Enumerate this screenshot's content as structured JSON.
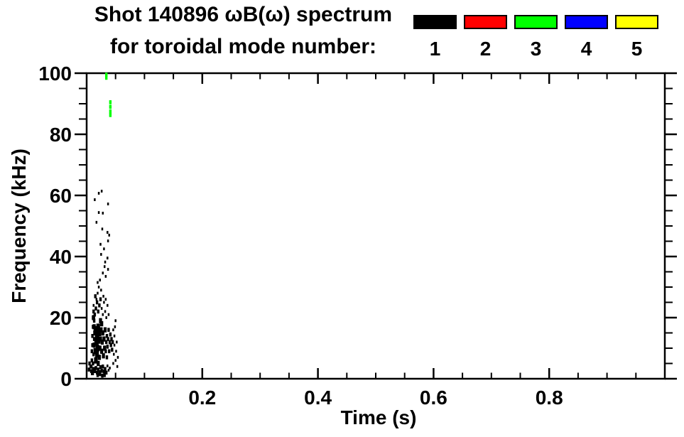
{
  "figure": {
    "title_line1": "Shot 140896 ωB(ω) spectrum",
    "title_line2": "for toroidal mode number:",
    "background": "#ffffff",
    "frame_color": "#000000"
  },
  "legend": {
    "entries": [
      {
        "label": "1",
        "color": "#000000"
      },
      {
        "label": "2",
        "color": "#ff0000"
      },
      {
        "label": "3",
        "color": "#00ff00"
      },
      {
        "label": "4",
        "color": "#0000ff"
      },
      {
        "label": "5",
        "color": "#ffff00"
      }
    ]
  },
  "chart_data": {
    "type": "scatter",
    "title": "Shot 140896 ωB(ω) spectrum for toroidal mode number:",
    "xlabel": "Time (s)",
    "ylabel": "Frequency (kHz)",
    "xlim": [
      0,
      1.0
    ],
    "ylim": [
      0,
      100
    ],
    "x_major_ticks": [
      0.2,
      0.4,
      0.6,
      0.8
    ],
    "x_tick_labels": [
      "0.2",
      "0.4",
      "0.6",
      "0.8"
    ],
    "x_minor_step": 0.05,
    "y_major_ticks": [
      0,
      20,
      40,
      60,
      80,
      100
    ],
    "y_tick_labels": [
      "0",
      "20",
      "40",
      "60",
      "80",
      "100"
    ],
    "y_minor_step": 5,
    "grid": false,
    "legend_position": "top-right, above plot",
    "series": [
      {
        "name": "toroidal mode n=1",
        "mode": 1,
        "color": "#000000",
        "points": [
          [
            0.016,
            16,
            5
          ],
          [
            0.018,
            14,
            5
          ],
          [
            0.017,
            12,
            5
          ],
          [
            0.019,
            10,
            4
          ],
          [
            0.015,
            9,
            4
          ],
          [
            0.02,
            17,
            4
          ],
          [
            0.022,
            15,
            4
          ],
          [
            0.021,
            12.5,
            4
          ],
          [
            0.018,
            8,
            4
          ],
          [
            0.016,
            6,
            4
          ],
          [
            0.023,
            10,
            3
          ],
          [
            0.024,
            13,
            3
          ],
          [
            0.025,
            16,
            3
          ],
          [
            0.022,
            7,
            3
          ],
          [
            0.02,
            5,
            3
          ],
          [
            0.026,
            9,
            3
          ],
          [
            0.027,
            12,
            3
          ],
          [
            0.028,
            15,
            3
          ],
          [
            0.026,
            18,
            3
          ],
          [
            0.024,
            19,
            3
          ],
          [
            0.029,
            7.5,
            3
          ],
          [
            0.031,
            10,
            3
          ],
          [
            0.03,
            13,
            3
          ],
          [
            0.032,
            16,
            3
          ],
          [
            0.013,
            11,
            3
          ],
          [
            0.014,
            15,
            3
          ],
          [
            0.013,
            17,
            3
          ],
          [
            0.012,
            20,
            3
          ],
          [
            0.034,
            12,
            2
          ],
          [
            0.033,
            9,
            2
          ],
          [
            0.035,
            14,
            2
          ],
          [
            0.036,
            10.5,
            2
          ],
          [
            0.037,
            13,
            2
          ],
          [
            0.038,
            16,
            2
          ],
          [
            0.035,
            7,
            2
          ],
          [
            0.039,
            9,
            2
          ],
          [
            0.04,
            12,
            2
          ],
          [
            0.041,
            14.5,
            2
          ],
          [
            0.042,
            11,
            2
          ],
          [
            0.043,
            13,
            2
          ],
          [
            0.044,
            9.5,
            2
          ],
          [
            0.045,
            12,
            2
          ],
          [
            0.01,
            2,
            3
          ],
          [
            0.012,
            3,
            3
          ],
          [
            0.014,
            2.5,
            2
          ],
          [
            0.016,
            3.5,
            2
          ],
          [
            0.018,
            2,
            2
          ],
          [
            0.02,
            3,
            2
          ],
          [
            0.022,
            2.2,
            2
          ],
          [
            0.024,
            3.8,
            2
          ],
          [
            0.026,
            2.6,
            2
          ],
          [
            0.028,
            4,
            2
          ],
          [
            0.03,
            2.4,
            2
          ],
          [
            0.032,
            3.2,
            2
          ],
          [
            0.034,
            2,
            2
          ],
          [
            0.036,
            4.2,
            1
          ],
          [
            0.038,
            2.8,
            1
          ],
          [
            0.04,
            3.5,
            1
          ],
          [
            0.031,
            1.2,
            2
          ],
          [
            0.027,
            1,
            2
          ],
          [
            0.023,
            1.5,
            2
          ],
          [
            0.019,
            1.2,
            2
          ],
          [
            0.004,
            3,
            2
          ],
          [
            0.005,
            5,
            2
          ],
          [
            0.007,
            4,
            2
          ],
          [
            0.008,
            2.5,
            2
          ],
          [
            0.008,
            4,
            2
          ],
          [
            0.009,
            6,
            2
          ],
          [
            0.009,
            9,
            2
          ],
          [
            0.01,
            11,
            2
          ],
          [
            0.01,
            14,
            2
          ],
          [
            0.011,
            17,
            2
          ],
          [
            0.011,
            20,
            2
          ],
          [
            0.012,
            22,
            2
          ],
          [
            0.012,
            24,
            1
          ],
          [
            0.013,
            19,
            2
          ],
          [
            0.013,
            13,
            2
          ],
          [
            0.012,
            8,
            2
          ],
          [
            0.011,
            5,
            2
          ],
          [
            0.046,
            5,
            1
          ],
          [
            0.047,
            8,
            1
          ],
          [
            0.048,
            11,
            1
          ],
          [
            0.048,
            14,
            1
          ],
          [
            0.049,
            17,
            1
          ],
          [
            0.05,
            6,
            1
          ],
          [
            0.051,
            9,
            1
          ],
          [
            0.052,
            12,
            1
          ],
          [
            0.053,
            4,
            1
          ],
          [
            0.054,
            7,
            1
          ],
          [
            0.05,
            19,
            1
          ],
          [
            0.046,
            16,
            1
          ],
          [
            0.014,
            21,
            2
          ],
          [
            0.016,
            23,
            2
          ],
          [
            0.018,
            25,
            2
          ],
          [
            0.02,
            22,
            2
          ],
          [
            0.022,
            24,
            2
          ],
          [
            0.024,
            26,
            2
          ],
          [
            0.026,
            23,
            1
          ],
          [
            0.028,
            21,
            1
          ],
          [
            0.015,
            27,
            2
          ],
          [
            0.017,
            26,
            1
          ],
          [
            0.019,
            28,
            1
          ],
          [
            0.03,
            25,
            1
          ],
          [
            0.032,
            22,
            1
          ],
          [
            0.034,
            20,
            1
          ],
          [
            0.021,
            30,
            1
          ],
          [
            0.025,
            29,
            1
          ],
          [
            0.029,
            27,
            1
          ],
          [
            0.033,
            26,
            1
          ],
          [
            0.036,
            24,
            1
          ],
          [
            0.038,
            21,
            1
          ],
          [
            0.021,
            60.7,
            1
          ],
          [
            0.026,
            61.4,
            1
          ],
          [
            0.014,
            58.6,
            1
          ],
          [
            0.037,
            57.2,
            1
          ],
          [
            0.021,
            54.4,
            1
          ],
          [
            0.028,
            54.2,
            1
          ],
          [
            0.017,
            51.2,
            1
          ],
          [
            0.036,
            47.9,
            1
          ],
          [
            0.039,
            47,
            1
          ],
          [
            0.037,
            45.1,
            1
          ],
          [
            0.025,
            40.7,
            1
          ],
          [
            0.036,
            39.5,
            1
          ],
          [
            0.031,
            36.7,
            1
          ],
          [
            0.037,
            35.8,
            1
          ],
          [
            0.033,
            33.5,
            1
          ],
          [
            0.023,
            32.3,
            1
          ],
          [
            0.019,
            31.5,
            1
          ],
          [
            0.028,
            34.6,
            1
          ],
          [
            0.032,
            38.2,
            1
          ],
          [
            0.024,
            44,
            1
          ],
          [
            0.03,
            42.5,
            1
          ],
          [
            0.027,
            49,
            1
          ]
        ]
      },
      {
        "name": "toroidal mode n=2",
        "mode": 2,
        "color": "#ff0000",
        "points": []
      },
      {
        "name": "toroidal mode n=3",
        "mode": 3,
        "color": "#00ff00",
        "points": [
          [
            0.034,
            99.5,
            2
          ],
          [
            0.034,
            98.5,
            2
          ],
          [
            0.041,
            90.5,
            2
          ],
          [
            0.041,
            89,
            2
          ],
          [
            0.041,
            87.5,
            2
          ],
          [
            0.041,
            86.3,
            2
          ]
        ]
      },
      {
        "name": "toroidal mode n=4",
        "mode": 4,
        "color": "#0000ff",
        "points": []
      },
      {
        "name": "toroidal mode n=5",
        "mode": 5,
        "color": "#ffff00",
        "points": []
      }
    ]
  }
}
